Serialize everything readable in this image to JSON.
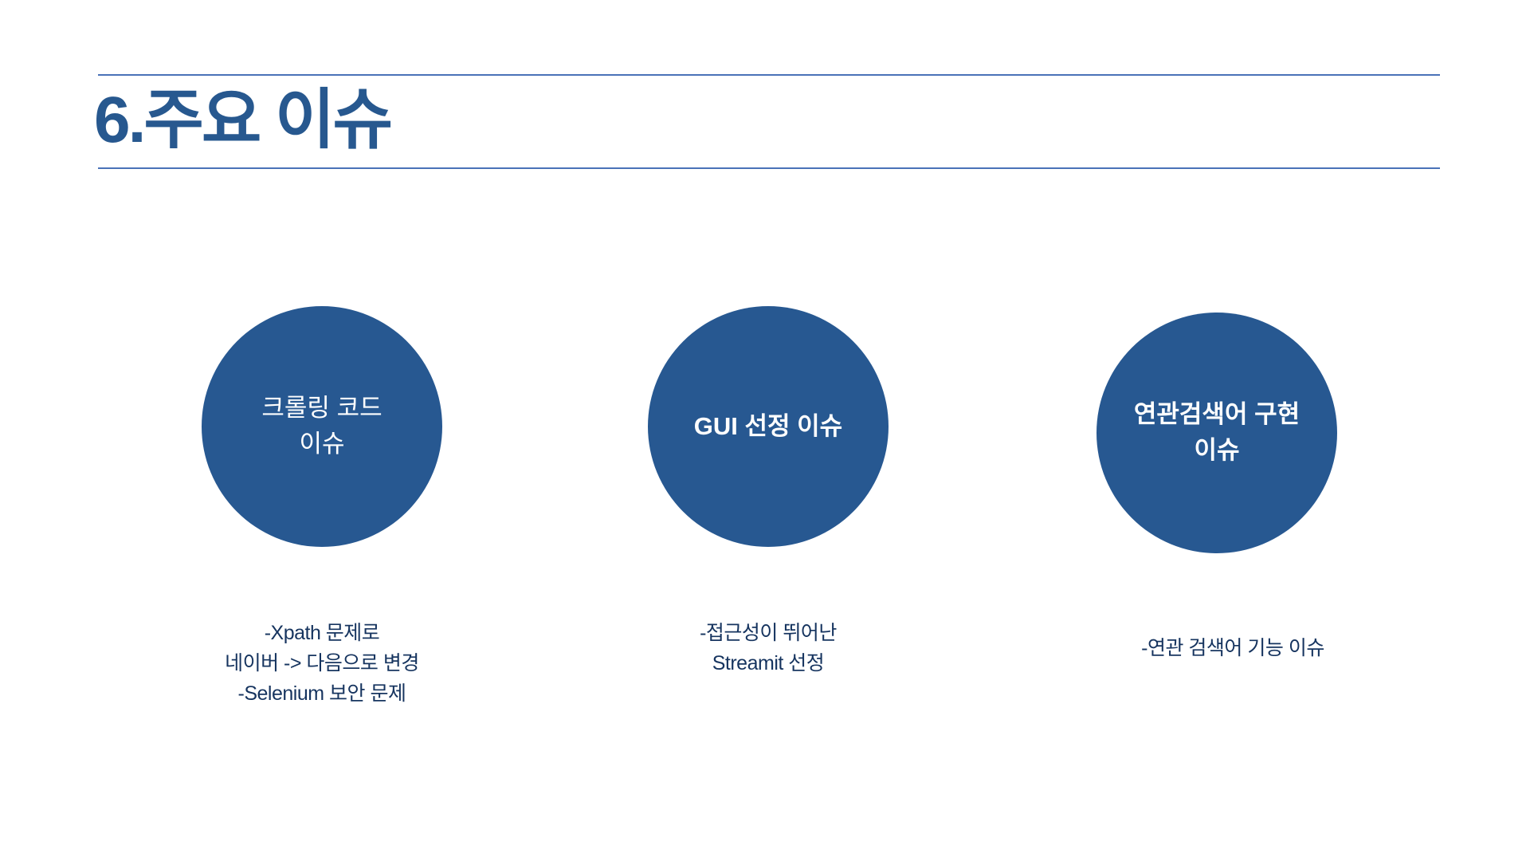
{
  "slide": {
    "title": "6.주요 이슈",
    "accent_color": "#275891",
    "rule_color": "#4a72b8"
  },
  "issues": [
    {
      "label": "크롤링 코드\n이슈",
      "description": "-Xpath 문제로\n네이버 -> 다음으로 변경\n-Selenium 보안 문제"
    },
    {
      "label": "GUI 선정 이슈",
      "description": "-접근성이 뛰어난\nStreamit 선정"
    },
    {
      "label": "연관검색어 구현\n이슈",
      "description": "-연관 검색어 기능 이슈"
    }
  ]
}
